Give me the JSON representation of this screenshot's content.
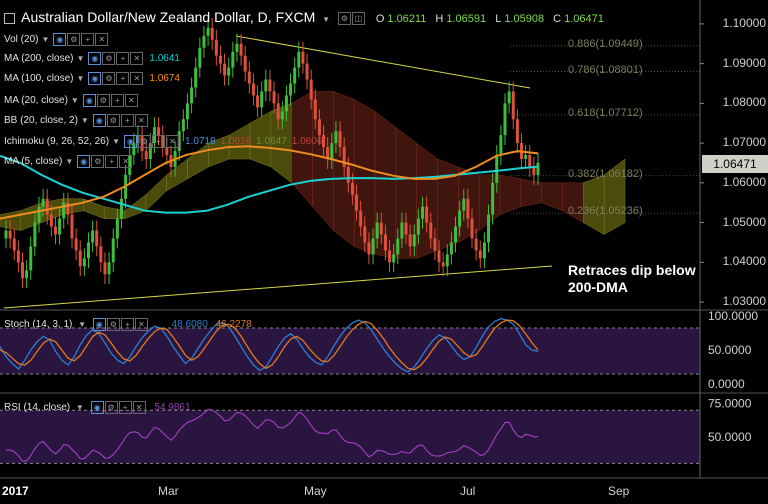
{
  "title": {
    "symbol": "Australian Dollar/New Zealand Dollar, D, FXCM",
    "open_label": "O",
    "open": "1.06211",
    "high_label": "H",
    "high": "1.06591",
    "low_label": "L",
    "low": "1.05908",
    "close_label": "C",
    "close": "1.06471"
  },
  "indicators": [
    {
      "label": "Vol (20)",
      "value": "",
      "value_color": ""
    },
    {
      "label": "MA (200, close)",
      "value": "1.0641",
      "value_color": "#00d0d0"
    },
    {
      "label": "MA (100, close)",
      "value": "1.0674",
      "value_color": "#ff8c00"
    },
    {
      "label": "MA (20, close)",
      "value": "",
      "value_color": ""
    },
    {
      "label": "BB (20, close, 2)",
      "value": "",
      "value_color": ""
    },
    {
      "label": "Ichimoku (9, 26, 52, 26)",
      "value": "1.0718",
      "value_color": "#3a8fe0",
      "extra": [
        "1.0616",
        "1.0647",
        "1.0606"
      ],
      "extra_colors": [
        "#c04040",
        "#6b8e23",
        "#c04040"
      ]
    },
    {
      "label": "MA (5, close)",
      "value": "",
      "value_color": ""
    }
  ],
  "oscillators": {
    "stoch": {
      "label": "Stoch (14, 3, 1)",
      "k": "48.6080",
      "d": "46.2278"
    },
    "rsi": {
      "label": "RSI (14, close)",
      "value": "54.9861"
    }
  },
  "annotation": {
    "line1": "Retraces dip below",
    "line2": "200-DMA"
  },
  "current_price": "1.06471",
  "colors": {
    "up": "#3cbf3c",
    "down": "#e0503c",
    "ma200": "#19d3d3",
    "ma100": "#f08c1e",
    "cloud_bull": "#6b6b10",
    "cloud_bear": "#5a1e14",
    "trend": "#d8d84a",
    "stoch_k": "#2a7fd4",
    "stoch_d": "#e07a1a",
    "rsi": "#9a3fb8",
    "osc_bg": "#2a1440"
  },
  "chart_data": {
    "type": "line",
    "title": "Australian Dollar/New Zealand Dollar, D, FXCM",
    "xlabel": "",
    "ylabel": "",
    "x_ticks": [
      "2017",
      "Mar",
      "May",
      "Jul",
      "Sep"
    ],
    "y_ticks": [
      "1.10000",
      "1.09000",
      "1.08000",
      "1.07000",
      "1.06000",
      "1.05000",
      "1.04000",
      "1.03000"
    ],
    "ylim": [
      1.028,
      1.104
    ],
    "fib_levels": [
      {
        "label": "0.886(1.09449)",
        "value": 1.09449
      },
      {
        "label": "0.786(1.08801)",
        "value": 1.08801
      },
      {
        "label": "0.618(1.07712)",
        "value": 1.07712
      },
      {
        "label": "0.382(1.06182)",
        "value": 1.06182
      },
      {
        "label": "0.236(1.05236)",
        "value": 1.05236
      }
    ],
    "close_series": [
      1.048,
      1.046,
      1.043,
      1.04,
      1.036,
      1.038,
      1.044,
      1.05,
      1.054,
      1.056,
      1.052,
      1.049,
      1.047,
      1.051,
      1.055,
      1.052,
      1.046,
      1.043,
      1.039,
      1.041,
      1.045,
      1.048,
      1.044,
      1.04,
      1.037,
      1.04,
      1.046,
      1.051,
      1.056,
      1.062,
      1.067,
      1.07,
      1.072,
      1.068,
      1.066,
      1.07,
      1.074,
      1.072,
      1.069,
      1.067,
      1.064,
      1.068,
      1.073,
      1.076,
      1.08,
      1.084,
      1.089,
      1.094,
      1.097,
      1.099,
      1.096,
      1.092,
      1.09,
      1.087,
      1.089,
      1.093,
      1.095,
      1.092,
      1.088,
      1.085,
      1.082,
      1.079,
      1.083,
      1.086,
      1.083,
      1.08,
      1.076,
      1.078,
      1.082,
      1.085,
      1.089,
      1.093,
      1.09,
      1.086,
      1.081,
      1.076,
      1.072,
      1.069,
      1.066,
      1.07,
      1.073,
      1.069,
      1.064,
      1.06,
      1.057,
      1.053,
      1.049,
      1.045,
      1.042,
      1.046,
      1.05,
      1.047,
      1.043,
      1.04,
      1.042,
      1.046,
      1.05,
      1.047,
      1.044,
      1.047,
      1.051,
      1.054,
      1.05,
      1.046,
      1.043,
      1.04,
      1.039,
      1.042,
      1.045,
      1.049,
      1.053,
      1.056,
      1.051,
      1.046,
      1.043,
      1.041,
      1.045,
      1.052,
      1.06,
      1.067,
      1.072,
      1.08,
      1.083,
      1.076,
      1.07,
      1.066,
      1.067,
      1.064,
      1.062,
      1.065
    ],
    "series": [
      {
        "name": "MA (200, close)",
        "values": [
          1.0668,
          1.065,
          1.062,
          1.0595,
          1.0575,
          1.056,
          1.0545,
          1.053,
          1.0525,
          1.0525,
          1.053,
          1.0545,
          1.0565,
          1.058,
          1.0595,
          1.0605,
          1.061,
          1.0612,
          1.0612,
          1.061,
          1.0612,
          1.0615,
          1.062,
          1.0625,
          1.063,
          1.0636,
          1.0641
        ]
      },
      {
        "name": "MA (100, close)",
        "values": [
          1.051,
          1.052,
          1.053,
          1.054,
          1.055,
          1.0565,
          1.059,
          1.062,
          1.065,
          1.067,
          1.0682,
          1.069,
          1.0692,
          1.0688,
          1.0682,
          1.0672,
          1.066,
          1.0646,
          1.063,
          1.0618,
          1.061,
          1.061,
          1.0618,
          1.064,
          1.0668,
          1.068,
          1.0674
        ]
      }
    ],
    "stoch_k": [
      55,
      40,
      30,
      22,
      35,
      50,
      62,
      70,
      65,
      48,
      35,
      28,
      40,
      58,
      72,
      80,
      74,
      60,
      45,
      35,
      30,
      40,
      55,
      68,
      78,
      85,
      82,
      70,
      55,
      42,
      30,
      38,
      52,
      66,
      78,
      88,
      90,
      84,
      70,
      55,
      40,
      28,
      20,
      25,
      40,
      55,
      68,
      74,
      66,
      52,
      40,
      32,
      28,
      40,
      56,
      70,
      82,
      90,
      94,
      90,
      80,
      66,
      52,
      40,
      30,
      22,
      18,
      25,
      38,
      52,
      64,
      72,
      68,
      56,
      44,
      36,
      40,
      54,
      70,
      84,
      92,
      96,
      94,
      88,
      74,
      58,
      50,
      48
    ],
    "stoch_d": [
      50,
      46,
      38,
      30,
      28,
      35,
      48,
      60,
      66,
      62,
      50,
      38,
      34,
      42,
      56,
      70,
      76,
      72,
      60,
      47,
      37,
      34,
      42,
      55,
      67,
      77,
      82,
      80,
      69,
      56,
      42,
      35,
      40,
      52,
      65,
      78,
      86,
      88,
      82,
      70,
      55,
      41,
      30,
      23,
      28,
      40,
      55,
      66,
      70,
      64,
      52,
      42,
      34,
      33,
      42,
      55,
      69,
      80,
      88,
      92,
      89,
      79,
      67,
      53,
      41,
      31,
      23,
      21,
      27,
      38,
      51,
      63,
      69,
      66,
      56,
      46,
      40,
      43,
      55,
      69,
      82,
      90,
      94,
      93,
      86,
      74,
      61,
      50
    ]
  }
}
